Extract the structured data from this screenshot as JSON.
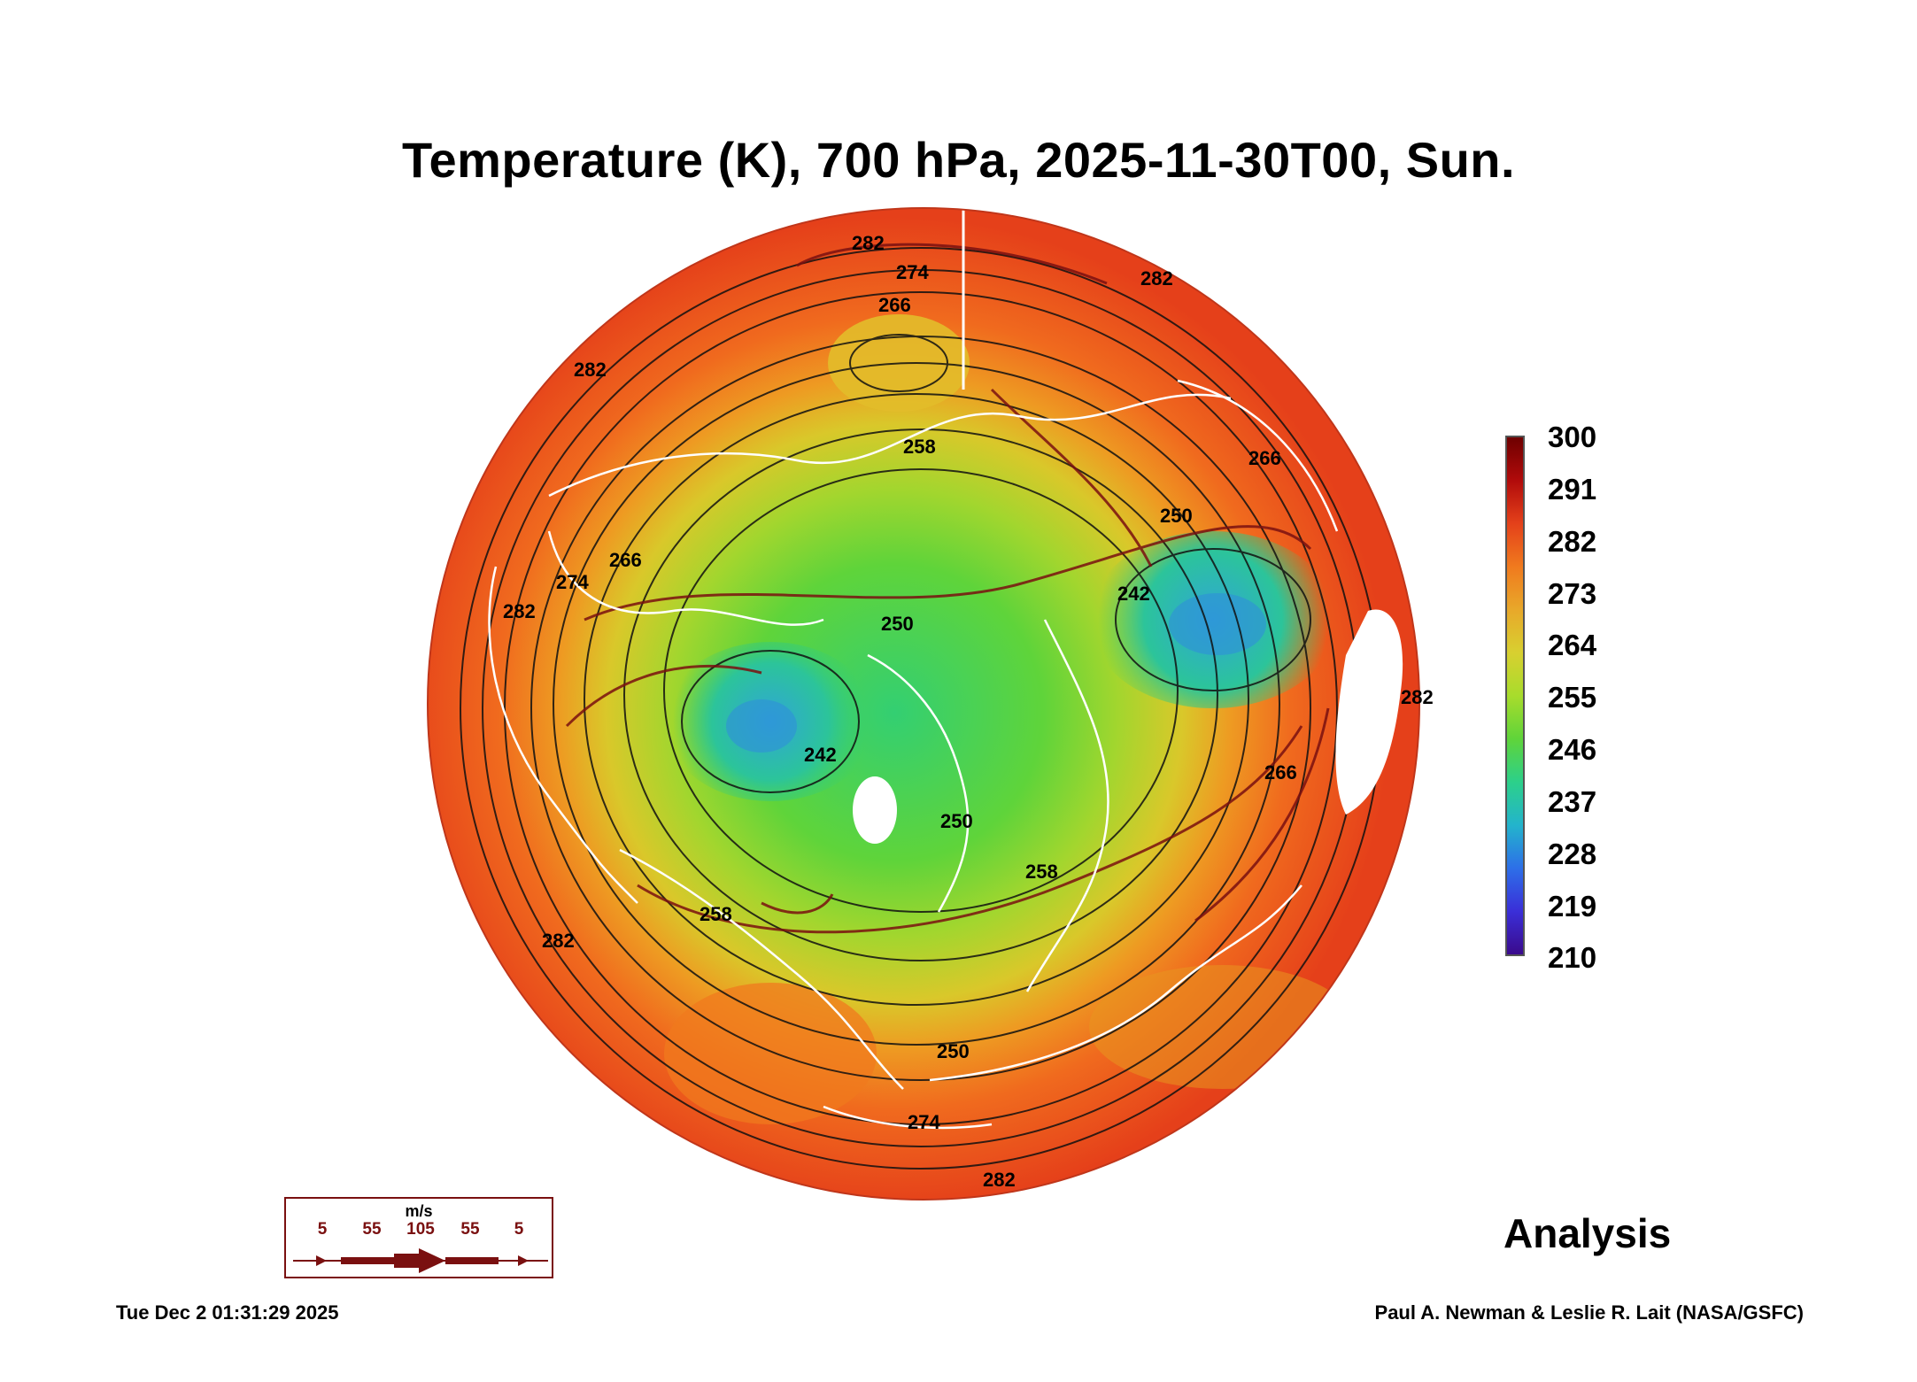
{
  "title": "Temperature (K), 700 hPa, 2025-11-30T00, Sun.",
  "colorbar": {
    "labels": [
      "300",
      "291",
      "282",
      "273",
      "264",
      "255",
      "246",
      "237",
      "228",
      "219",
      "210"
    ],
    "colors": [
      "#6e0000",
      "#b10b0b",
      "#e4411a",
      "#f07a1e",
      "#e8a82a",
      "#d8d030",
      "#a8dc2c",
      "#5fd43a",
      "#2cd08a",
      "#23b4cc",
      "#2d6fe8",
      "#3a2fd8",
      "#3a0a8c"
    ]
  },
  "contour_labels": [
    "282",
    "274",
    "266",
    "282",
    "258",
    "282",
    "266",
    "274",
    "282",
    "250",
    "242",
    "250",
    "242",
    "250",
    "266",
    "282",
    "258",
    "258",
    "250",
    "282",
    "266",
    "274",
    "282"
  ],
  "wind_key": {
    "unit": "m/s",
    "values": [
      "5",
      "55",
      "105",
      "55",
      "5"
    ]
  },
  "analysis_label": "Analysis",
  "timestamp": "Tue Dec  2 01:31:29 2025",
  "credit": "Paul A. Newman & Leslie R. Lait (NASA/GSFC)"
}
